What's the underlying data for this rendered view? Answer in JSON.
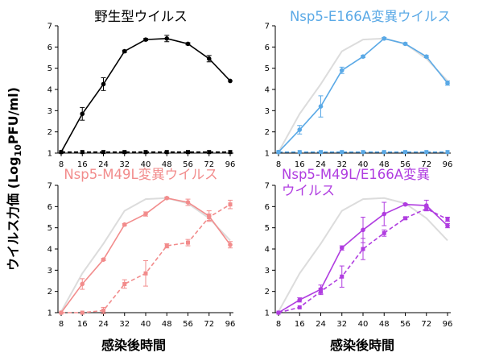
{
  "y_axis_label": "ウイルス力価 (Log10PFU/ml)",
  "x_axis_label": "感染後時間",
  "chart_data": [
    {
      "type": "line",
      "title": [
        "野生型ウイルス"
      ],
      "x": [
        "8",
        "16",
        "24",
        "32",
        "40",
        "48",
        "56",
        "72",
        "96"
      ],
      "ylim": [
        1,
        7
      ],
      "yticks": [
        1,
        2,
        3,
        4,
        5,
        6,
        7
      ],
      "color": "#000000",
      "reference": null,
      "series": [
        {
          "style": "solid",
          "values": [
            1.05,
            2.85,
            4.25,
            5.8,
            6.35,
            6.4,
            6.15,
            5.45,
            4.4
          ],
          "errors": [
            0,
            0.3,
            0.3,
            0.05,
            0.05,
            0.15,
            0.05,
            0.15,
            0
          ]
        },
        {
          "style": "dashed",
          "values": [
            1.05,
            1.05,
            1.05,
            1.05,
            1.05,
            1.05,
            1.05,
            1.05,
            1.05
          ],
          "errors": [
            0,
            0,
            0,
            0,
            0,
            0,
            0,
            0,
            0
          ]
        }
      ]
    },
    {
      "type": "line",
      "title": [
        "Nsp5-E166A変異ウイルス"
      ],
      "x": [
        "8",
        "16",
        "24",
        "32",
        "40",
        "48",
        "56",
        "72",
        "96"
      ],
      "ylim": [
        1,
        7
      ],
      "yticks": [
        1,
        2,
        3,
        4,
        5,
        6,
        7
      ],
      "color": "#5aa9e6",
      "reference": {
        "color": "#dcdcdc",
        "values": [
          1.05,
          2.85,
          4.25,
          5.8,
          6.35,
          6.4,
          6.15,
          5.45,
          4.4
        ]
      },
      "series": [
        {
          "style": "solid",
          "values": [
            1.05,
            2.1,
            3.2,
            4.9,
            5.55,
            6.4,
            6.15,
            5.55,
            4.3
          ],
          "errors": [
            0,
            0.2,
            0.5,
            0.15,
            0.05,
            0.05,
            0.05,
            0.05,
            0.1
          ]
        },
        {
          "style": "dashed",
          "values": [
            1.05,
            1.05,
            1.05,
            1.05,
            1.05,
            1.05,
            1.05,
            1.05,
            1.05
          ],
          "errors": [
            0,
            0,
            0,
            0,
            0,
            0,
            0,
            0,
            0
          ]
        }
      ]
    },
    {
      "type": "line",
      "title": [
        "Nsp5-M49L変異ウイルス"
      ],
      "x": [
        "8",
        "16",
        "24",
        "32",
        "40",
        "48",
        "56",
        "72",
        "96"
      ],
      "ylim": [
        1,
        7
      ],
      "yticks": [
        1,
        2,
        3,
        4,
        5,
        6,
        7
      ],
      "color": "#f28c8c",
      "reference": {
        "color": "#dcdcdc",
        "values": [
          1.05,
          2.85,
          4.25,
          5.8,
          6.35,
          6.4,
          6.15,
          5.45,
          4.4
        ]
      },
      "series": [
        {
          "style": "solid",
          "values": [
            1.0,
            2.35,
            3.5,
            5.15,
            5.65,
            6.4,
            6.2,
            5.55,
            4.2
          ],
          "errors": [
            0,
            0.25,
            0.05,
            0.05,
            0.1,
            0.05,
            0.15,
            0.25,
            0.15
          ]
        },
        {
          "style": "dashed",
          "values": [
            1.0,
            1.0,
            1.1,
            2.35,
            2.85,
            4.15,
            4.3,
            5.5,
            6.1
          ],
          "errors": [
            0,
            0,
            0.15,
            0.2,
            0.6,
            0.1,
            0.15,
            0.15,
            0.2
          ]
        }
      ]
    },
    {
      "type": "line",
      "title": [
        "Nsp5-M49L/E166A変異",
        "ウイルス"
      ],
      "x": [
        "8",
        "16",
        "24",
        "32",
        "40",
        "48",
        "56",
        "72",
        "96"
      ],
      "ylim": [
        1,
        7
      ],
      "yticks": [
        1,
        2,
        3,
        4,
        5,
        6,
        7
      ],
      "color": "#b03de0",
      "reference": {
        "color": "#dcdcdc",
        "values": [
          1.05,
          2.85,
          4.25,
          5.8,
          6.35,
          6.4,
          6.15,
          5.45,
          4.4
        ]
      },
      "series": [
        {
          "style": "solid",
          "values": [
            1.0,
            1.6,
            2.1,
            4.05,
            4.9,
            5.65,
            6.1,
            6.05,
            5.1
          ],
          "errors": [
            0,
            0.1,
            0.2,
            0.1,
            0.6,
            0.55,
            0.05,
            0.25,
            0.1
          ]
        },
        {
          "style": "dashed",
          "values": [
            1.0,
            1.25,
            2.0,
            2.7,
            4.0,
            4.75,
            5.45,
            5.9,
            5.4
          ],
          "errors": [
            0,
            0,
            0.15,
            0.5,
            0.5,
            0.15,
            0.05,
            0.1,
            0.1
          ]
        }
      ]
    }
  ]
}
